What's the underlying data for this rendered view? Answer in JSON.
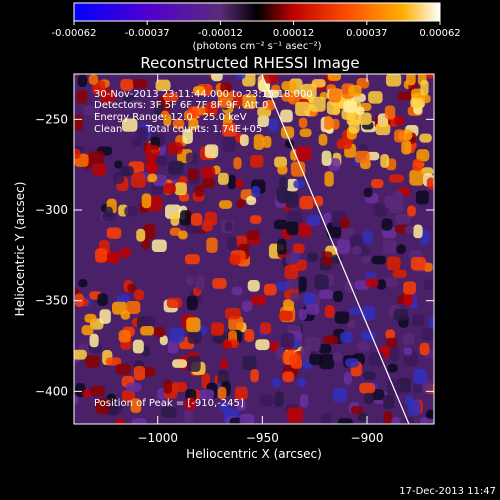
{
  "colorbar": {
    "ticks": [
      "-0.00062",
      "-0.00037",
      "-0.00012",
      "0.00012",
      "0.00037",
      "0.00062"
    ],
    "unit_label": "(photons cm⁻² s⁻¹ asec⁻²)"
  },
  "chart_data": {
    "type": "heatmap",
    "title": "Reconstructed RHESSI Image",
    "xlabel": "Heliocentric X (arcsec)",
    "ylabel": "Heliocentric Y (arcsec)",
    "xlim": [
      -1040,
      -868
    ],
    "ylim": [
      -418,
      -225
    ],
    "xticks": [
      -1000,
      -950,
      -900
    ],
    "xtick_labels": [
      "−1000",
      "−950",
      "−900"
    ],
    "yticks": [
      -250,
      -300,
      -350,
      -400
    ],
    "ytick_labels": [
      "−250",
      "−300",
      "−350",
      "−400"
    ],
    "value_range": [
      -0.00062,
      0.00062
    ],
    "limb_line": [
      [
        -950,
        -226
      ],
      [
        -880,
        -418
      ]
    ],
    "annotations": {
      "time": "30-Nov-2013 23:11:44.000 to 23:15:18.000",
      "detectors": "Detectors: 3F 5F 6F 7F 8F 9F, Att 0",
      "energy": "Energy Range: 12.0 - 25.0 keV",
      "method": "Clean",
      "counts": "Total counts: 1.74E+05",
      "peak": "Position of Peak = [-910,-245]"
    }
  },
  "footer": {
    "date": "17-Dec-2013 11:47"
  }
}
